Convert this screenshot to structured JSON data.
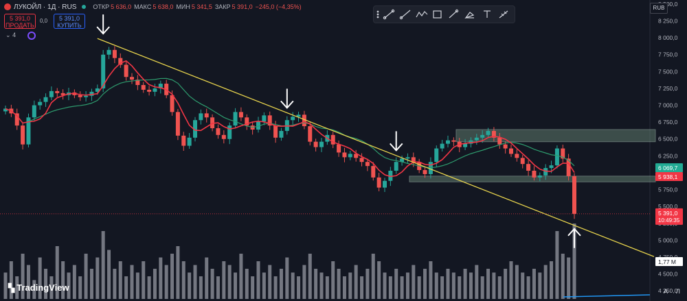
{
  "header": {
    "symbol": "ЛУКОЙЛ · 1Д · RUS",
    "open_label": "ОТКР",
    "open_value": "5 636,0",
    "high_label": "МАКС",
    "high_value": "5 638,0",
    "low_label": "МИН",
    "low_value": "5 341,5",
    "close_label": "ЗАКР",
    "close_value": "5 391,0",
    "change_value": "−245,0 (−4,35%)"
  },
  "trade": {
    "sell_price": "5 391,0",
    "sell_label": "ПРОДАТЬ",
    "spread": "0,0",
    "buy_price": "5 391,0",
    "buy_label": "КУПИТЬ"
  },
  "indicators_count": "4",
  "currency": "RUB",
  "brand": "TradingView",
  "scale_buttons": [
    "A",
    "Л"
  ],
  "colors": {
    "background": "#131722",
    "up": "#26a69a",
    "down": "#ef5350",
    "trendline": "#e8d44d",
    "ma_fast": "#f23645",
    "ma_slow": "#2e9c6e",
    "zone_fill": "#5e7a6c",
    "volume": "#9598a1",
    "price_tag": "#f23645",
    "ma_tag": "#22ab94"
  },
  "icons": [
    "buy-sell-icon",
    "drawing-tools-icon",
    "trendline-icon",
    "path-icon",
    "rectangle-icon",
    "brush-icon",
    "highlighter-icon",
    "text-icon",
    "measure-icon",
    "settings-icon"
  ],
  "chart_data": {
    "type": "candlestick",
    "yaxis_ticks": [
      4250,
      4500,
      4750,
      5000,
      5250,
      5500,
      5750,
      6000,
      6250,
      6500,
      6750,
      7000,
      7250,
      7500,
      7750,
      8000,
      8250,
      8500
    ],
    "yaxis_tick_labels": [
      "4 250,0",
      "4 500,0",
      "4 750,0",
      "5 000,0",
      "5 250,0",
      "5 500,0",
      "5 750,0",
      "6 000,0",
      "6 250,0",
      "6 500,0",
      "6 750,0",
      "7 000,0",
      "7 250,0",
      "7 500,0",
      "7 750,0",
      "8 000,0",
      "8 250,0",
      "8 500,0"
    ],
    "ylim": [
      4130,
      8560
    ],
    "closes": [
      6950,
      6880,
      6700,
      6420,
      6820,
      7000,
      7050,
      7120,
      7210,
      7180,
      7150,
      7190,
      7150,
      7120,
      7140,
      7200,
      7250,
      7750,
      7820,
      7700,
      7600,
      7420,
      7380,
      7300,
      7230,
      7200,
      7250,
      7320,
      7150,
      6900,
      6550,
      6400,
      6520,
      6780,
      6880,
      6820,
      6660,
      6560,
      6500,
      6700,
      6900,
      6820,
      6700,
      6640,
      6760,
      6850,
      6700,
      6520,
      6620,
      6780,
      6830,
      6860,
      6690,
      6460,
      6380,
      6460,
      6560,
      6420,
      6300,
      6230,
      6280,
      6220,
      6160,
      6100,
      5930,
      5780,
      5880,
      6030,
      6160,
      6210,
      6230,
      6160,
      6040,
      5980,
      6160,
      6360,
      6430,
      6480,
      6460,
      6380,
      6430,
      6480,
      6520,
      6560,
      6620,
      6520,
      6420,
      6360,
      6280,
      6220,
      6130,
      6030,
      5930,
      5960,
      6070,
      6110,
      6360,
      6210,
      5950,
      5391
    ],
    "trendline": [
      {
        "close_index": 16,
        "value": 7990
      },
      {
        "close_index": 99,
        "value": 5220
      }
    ],
    "resistance_zone": [
      6460,
      6640
    ],
    "support_zone": [
      5865,
      5950
    ],
    "ma_fast_label": "6 069,7",
    "ma_slow_label": "5 938,1",
    "last_price_label": "5 391,0",
    "last_countdown": "10:49:35",
    "volume_label": "1,77 M",
    "annotations": [
      {
        "type": "arrow-down",
        "close_index": 17,
        "at_value": 8000
      },
      {
        "type": "arrow-down",
        "close_index": 49,
        "at_value": 6900
      },
      {
        "type": "arrow-down",
        "close_index": 68,
        "at_value": 6270
      },
      {
        "type": "arrow-up",
        "close_index": 99,
        "at_value": 5230
      }
    ]
  }
}
